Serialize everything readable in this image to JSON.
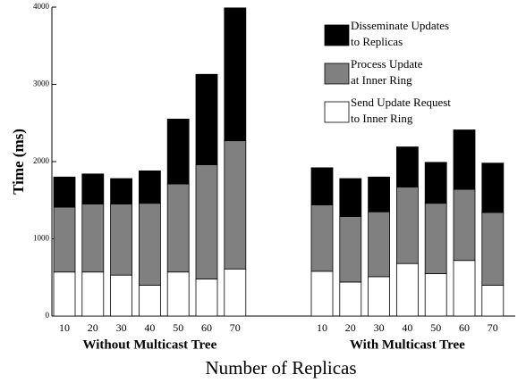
{
  "chart_data": {
    "type": "bar",
    "stacked": true,
    "xlabel": "Number of Replicas",
    "ylabel": "Time (ms)",
    "ylim": [
      0,
      4000
    ],
    "yticks": [
      0,
      1000,
      2000,
      3000,
      4000
    ],
    "series": [
      {
        "name": [
          "Send Update Request",
          "to Inner Ring"
        ],
        "color": "#ffffff"
      },
      {
        "name": [
          "Process Update",
          "at Inner Ring"
        ],
        "color": "#808080"
      },
      {
        "name": [
          "Disseminate Updates",
          "to Replicas"
        ],
        "color": "#000000"
      }
    ],
    "groups": [
      {
        "name": "Without Multicast Tree",
        "categories": [
          "10",
          "20",
          "30",
          "40",
          "50",
          "60",
          "70"
        ],
        "series": [
          {
            "values": [
              570,
              570,
              530,
              400,
              570,
              480,
              610
            ]
          },
          {
            "values": [
              840,
              880,
              920,
              1060,
              1140,
              1480,
              1660
            ]
          },
          {
            "values": [
              390,
              390,
              330,
              420,
              840,
              1170,
              1720
            ]
          }
        ]
      },
      {
        "name": "With Multicast Tree",
        "categories": [
          "10",
          "20",
          "30",
          "40",
          "50",
          "60",
          "70"
        ],
        "series": [
          {
            "values": [
              580,
              440,
              510,
              680,
              550,
              720,
              400
            ]
          },
          {
            "values": [
              860,
              850,
              840,
              990,
              910,
              920,
              940
            ]
          },
          {
            "values": [
              480,
              490,
              450,
              520,
              530,
              770,
              640
            ]
          }
        ]
      }
    ]
  }
}
